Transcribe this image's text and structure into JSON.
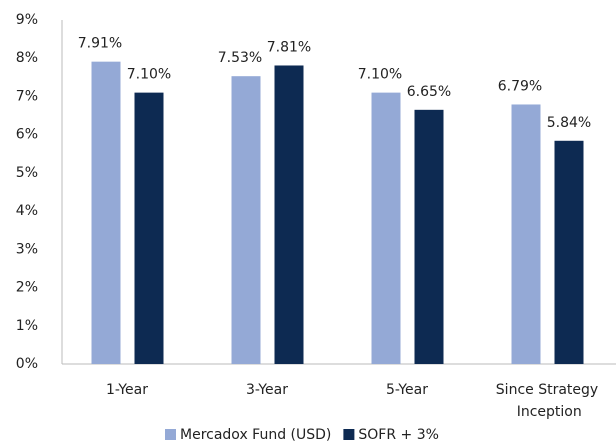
{
  "chart_data": {
    "type": "bar",
    "categories": [
      "1-Year",
      "3-Year",
      "5-Year",
      "Since Strategy Inception"
    ],
    "series": [
      {
        "name": "Mercadox Fund (USD)",
        "color": "#94a9d6",
        "values": [
          7.91,
          7.53,
          7.1,
          6.79
        ],
        "value_labels": [
          "7.91%",
          "7.53%",
          "7.10%",
          "6.79%"
        ]
      },
      {
        "name": "SOFR + 3%",
        "color": "#0d2a52",
        "values": [
          7.1,
          7.81,
          6.65,
          5.84
        ],
        "value_labels": [
          "7.10%",
          "7.81%",
          "6.65%",
          "5.84%"
        ]
      }
    ],
    "ylim": [
      0,
      9
    ],
    "yticks": [
      {
        "value": 0,
        "label": "0%"
      },
      {
        "value": 1,
        "label": "1%"
      },
      {
        "value": 2,
        "label": "2%"
      },
      {
        "value": 3,
        "label": "3%"
      },
      {
        "value": 4,
        "label": "4%"
      },
      {
        "value": 5,
        "label": "5%"
      },
      {
        "value": 6,
        "label": "6%"
      },
      {
        "value": 7,
        "label": "7%"
      },
      {
        "value": 8,
        "label": "8%"
      },
      {
        "value": 9,
        "label": "9%"
      }
    ],
    "grid": false,
    "legend": "bottom"
  }
}
